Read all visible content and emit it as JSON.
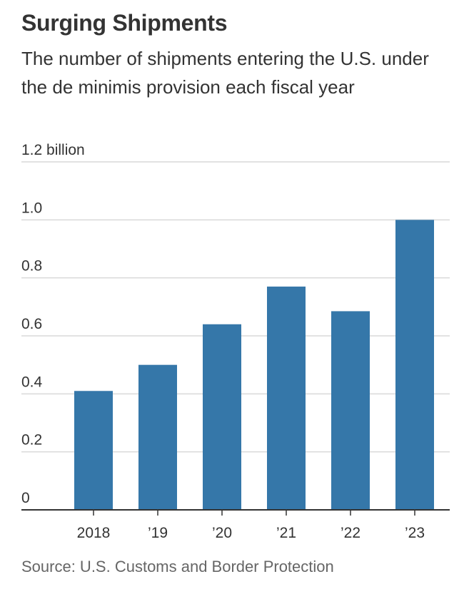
{
  "header": {
    "title": "Surging Shipments",
    "subtitle": "The number of shipments entering the U.S. under the de minimis provision each fiscal year"
  },
  "footer": {
    "source": "Source: U.S. Customs and Border Protection"
  },
  "colors": {
    "bar": "#3577a9",
    "grid": "#d9d9d9",
    "axis": "#333333"
  },
  "chart_data": {
    "type": "bar",
    "title": "Surging Shipments",
    "subtitle": "The number of shipments entering the U.S. under the de minimis provision each fiscal year",
    "categories": [
      "2018",
      "’19",
      "’20",
      "’21",
      "’22",
      "’23"
    ],
    "values": [
      0.41,
      0.5,
      0.64,
      0.77,
      0.685,
      1.0
    ],
    "ylabel": "",
    "xlabel": "",
    "unit": "billion",
    "ylim": [
      0,
      1.2
    ],
    "yticks": [
      0,
      0.2,
      0.4,
      0.6,
      0.8,
      1.0,
      1.2
    ],
    "ytick_labels": [
      "0",
      "0.2",
      "0.4",
      "0.6",
      "0.8",
      "1.0",
      "1.2 billion"
    ],
    "grid": true,
    "legend": "none"
  }
}
